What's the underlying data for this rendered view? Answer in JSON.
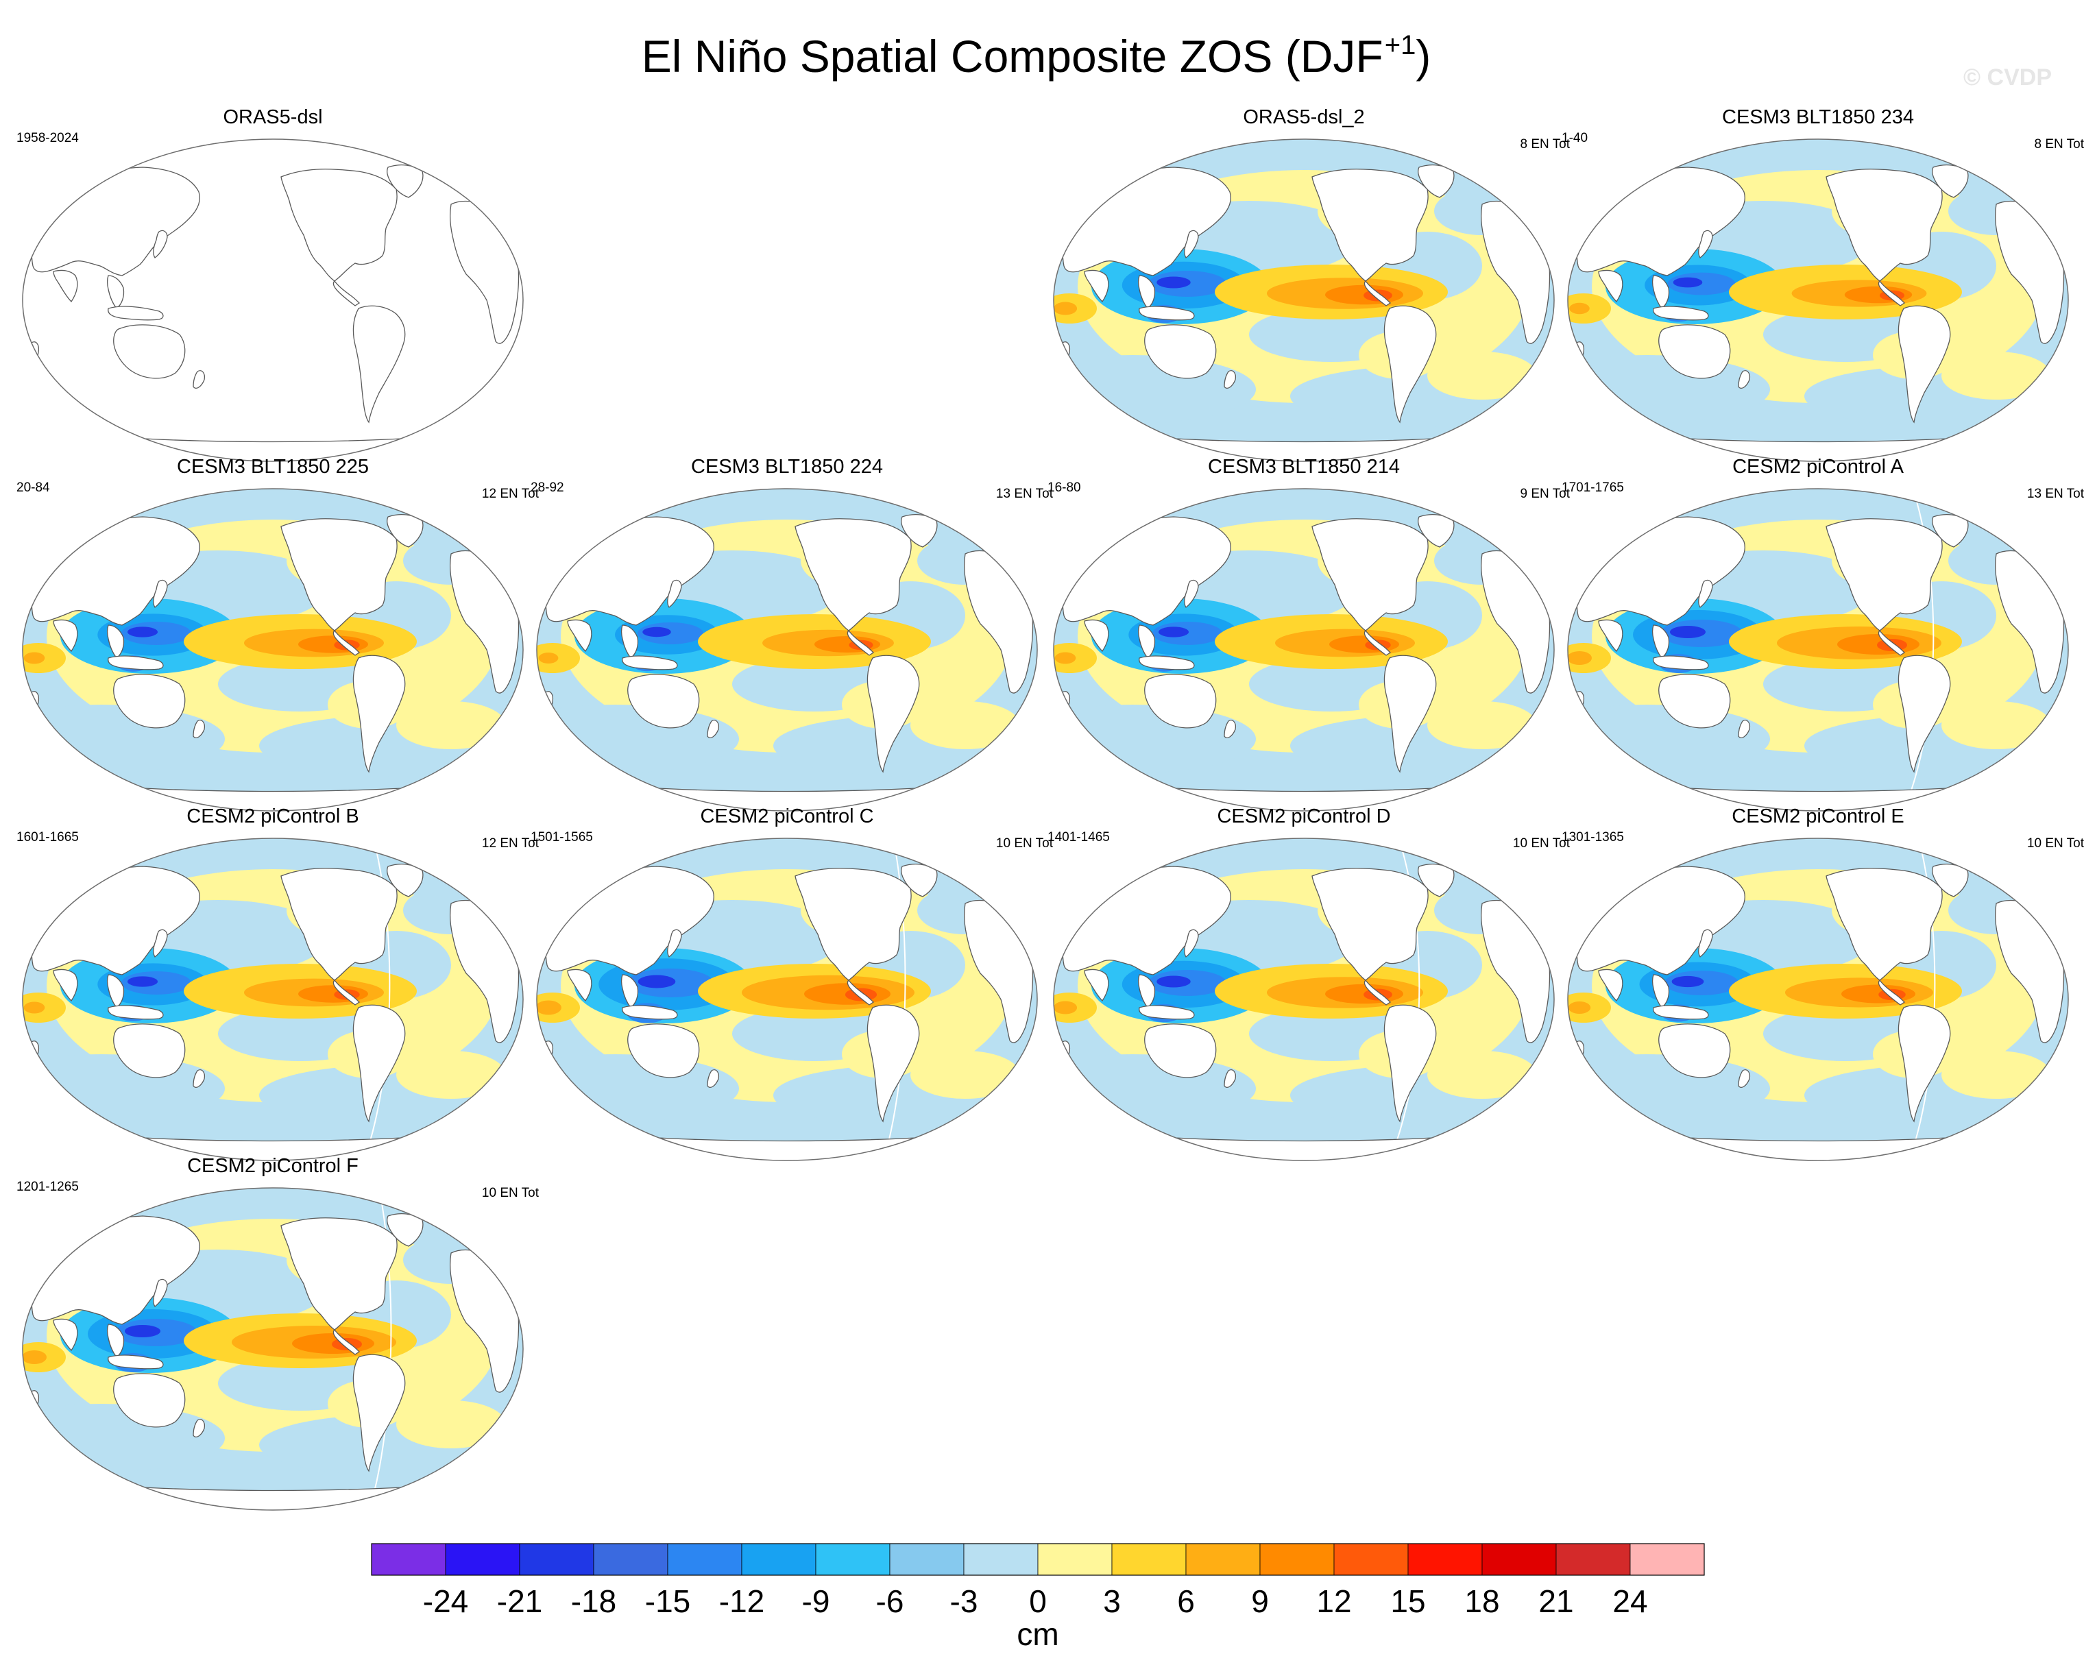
{
  "title": "El Niño Spatial Composite ZOS (DJF",
  "title_sup": "+1",
  "title_close": ")",
  "watermark": "© CVDP",
  "chart_data": {
    "type": "heatmap",
    "title": "El Niño Spatial Composite ZOS (DJF+1)",
    "variable": "ZOS",
    "season": "DJF+1",
    "units": "cm",
    "colorbar": {
      "label": "cm",
      "levels": [
        -24,
        -21,
        -18,
        -15,
        -12,
        -9,
        -6,
        -3,
        0,
        3,
        6,
        9,
        12,
        15,
        18,
        21,
        24
      ],
      "tick_labels": [
        "-24",
        "-21",
        "-18",
        "-15",
        "-12",
        "-9",
        "-6",
        "-3",
        "0",
        "3",
        "6",
        "9",
        "12",
        "15",
        "18",
        "21",
        "24"
      ],
      "colors": [
        "#7b2ee6",
        "#2a14f5",
        "#2038e6",
        "#3a6ae0",
        "#2c86f2",
        "#18a2f2",
        "#2fc2f6",
        "#86c9ee",
        "#b9e0f2",
        "#fff79a",
        "#ffd62e",
        "#ffae14",
        "#ff8a00",
        "#ff5a0a",
        "#ff1400",
        "#e00000",
        "#d42a2a",
        "#ffb4b4"
      ]
    },
    "panels": [
      {
        "title": "ORAS5-dsl",
        "years": "1958-2024",
        "count": "",
        "empty": true,
        "intensity": 0
      },
      {
        "title": "ORAS5-dsl_2",
        "years": "",
        "count": "8 EN Tot",
        "empty": false,
        "intensity": 0.95
      },
      {
        "title": "CESM3 BLT1850 234",
        "years": "1-40",
        "count": "8 EN Tot",
        "empty": false,
        "intensity": 0.82
      },
      {
        "title": "CESM3 BLT1850 225",
        "years": "20-84",
        "count": "12 EN Tot",
        "empty": false,
        "intensity": 0.85
      },
      {
        "title": "CESM3 BLT1850 224",
        "years": "28-92",
        "count": "13 EN Tot",
        "empty": false,
        "intensity": 0.8
      },
      {
        "title": "CESM3 BLT1850 214",
        "years": "16-80",
        "count": "9 EN Tot",
        "empty": false,
        "intensity": 0.85
      },
      {
        "title": "CESM2 piControl A",
        "years": "1701-1765",
        "count": "13 EN Tot",
        "empty": false,
        "intensity": 1.0
      },
      {
        "title": "CESM2 piControl B",
        "years": "1601-1665",
        "count": "12 EN Tot",
        "empty": false,
        "intensity": 0.85
      },
      {
        "title": "CESM2 piControl C",
        "years": "1501-1565",
        "count": "10 EN Tot",
        "empty": false,
        "intensity": 1.05
      },
      {
        "title": "CESM2 piControl D",
        "years": "1401-1465",
        "count": "10 EN Tot",
        "empty": false,
        "intensity": 0.95
      },
      {
        "title": "CESM2 piControl E",
        "years": "1301-1365",
        "count": "10 EN Tot",
        "empty": false,
        "intensity": 0.9
      },
      {
        "title": "CESM2 piControl F",
        "years": "1201-1265",
        "count": "10 EN Tot",
        "empty": false,
        "intensity": 1.0
      }
    ]
  }
}
